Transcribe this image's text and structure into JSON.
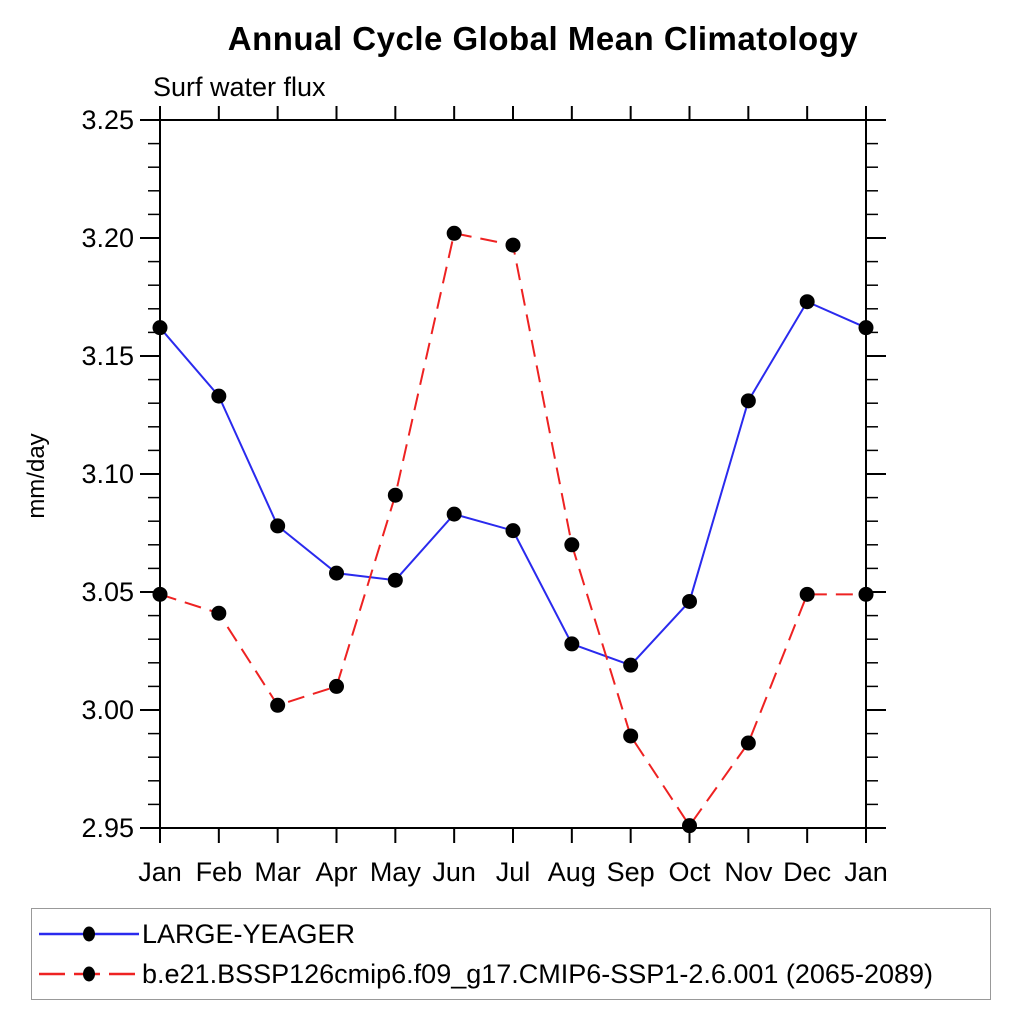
{
  "chart_data": {
    "type": "line",
    "title": "Annual Cycle Global Mean Climatology",
    "subtitle": "Surf water flux",
    "ylabel": "mm/day",
    "categories": [
      "Jan",
      "Feb",
      "Mar",
      "Apr",
      "May",
      "Jun",
      "Jul",
      "Aug",
      "Sep",
      "Oct",
      "Nov",
      "Dec",
      "Jan"
    ],
    "y_tick_labels": [
      "3.25",
      "3.20",
      "3.15",
      "3.10",
      "3.05",
      "3.00",
      "2.95"
    ],
    "ylim": [
      2.95,
      3.25
    ],
    "y_major_step": 0.05,
    "y_minor_step": 0.01,
    "grid": false,
    "legend_position": "bottom-left",
    "axis_color": "#000000",
    "series": [
      {
        "name": "LARGE-YEAGER",
        "line_style": "solid",
        "line_color": "#2a2aee",
        "marker": "filled-circle",
        "marker_color": "#000000",
        "values": [
          3.162,
          3.133,
          3.078,
          3.058,
          3.055,
          3.083,
          3.076,
          3.028,
          3.019,
          3.046,
          3.131,
          3.173,
          3.162
        ]
      },
      {
        "name": "b.e21.BSSP126cmip6.f09_g17.CMIP6-SSP1-2.6.001 (2065-2089)",
        "line_style": "dashed",
        "line_color": "#ee2222",
        "marker": "filled-circle",
        "marker_color": "#000000",
        "values": [
          3.049,
          3.041,
          3.002,
          3.01,
          3.091,
          3.202,
          3.197,
          3.07,
          2.989,
          2.951,
          2.986,
          3.049,
          3.049
        ]
      }
    ]
  }
}
